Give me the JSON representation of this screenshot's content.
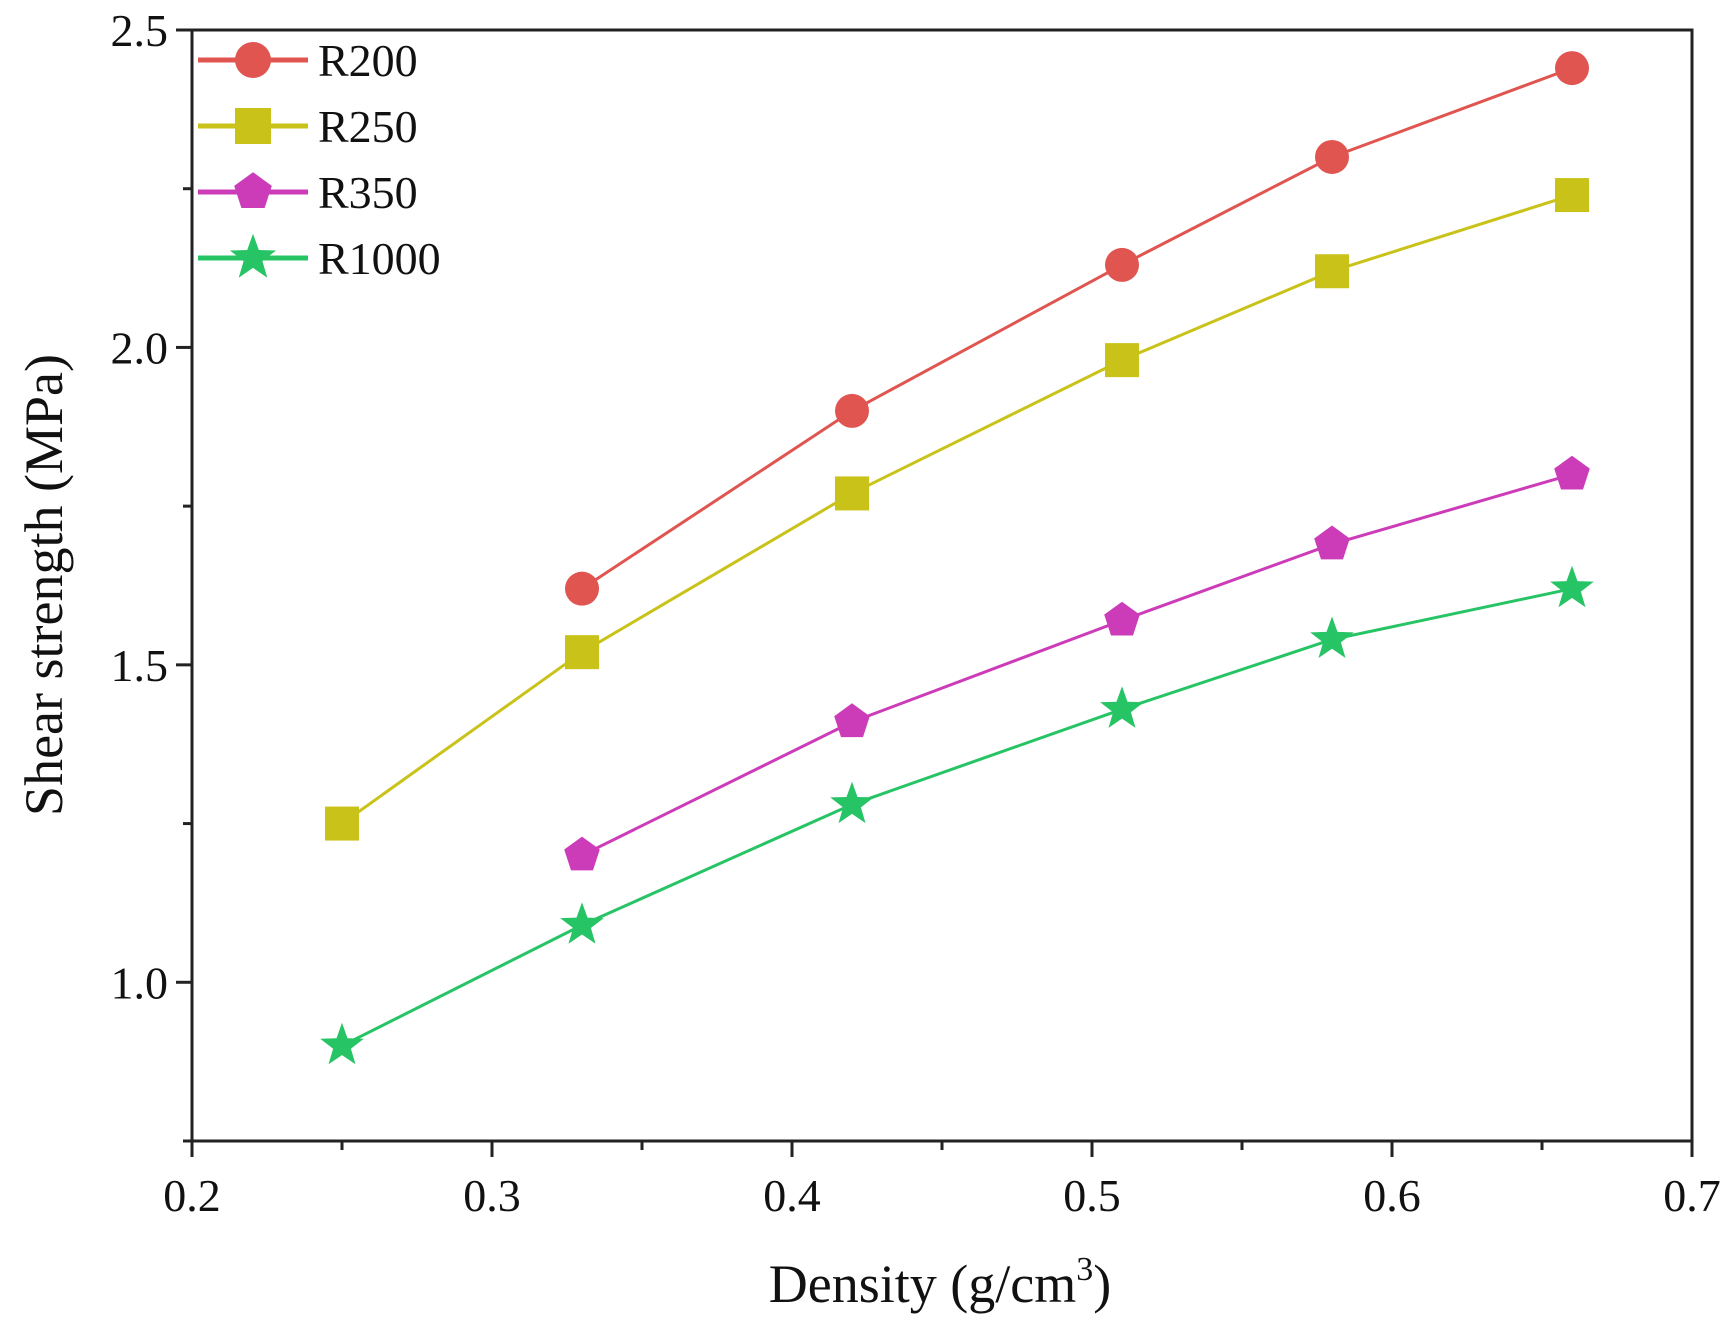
{
  "chart_data": {
    "type": "line",
    "xlabel": "Density (g/cm",
    "xlabel_superscript": "3",
    "xlabel_suffix": ")",
    "ylabel": "Shear strength (MPa)",
    "xlim": [
      0.2,
      0.7
    ],
    "ylim": [
      0.75,
      2.5
    ],
    "x_ticks": [
      0.2,
      0.3,
      0.4,
      0.5,
      0.6,
      0.7
    ],
    "x_tick_labels": [
      "0.2",
      "0.3",
      "0.4",
      "0.5",
      "0.6",
      "0.7"
    ],
    "y_ticks": [
      1.0,
      1.5,
      2.0,
      2.5
    ],
    "y_tick_labels": [
      "1.0",
      "1.5",
      "2.0",
      "2.5"
    ],
    "grid": false,
    "legend_position": "top-left",
    "series": [
      {
        "name": "R200",
        "color": "#e05550",
        "marker": "circle",
        "x": [
          0.33,
          0.42,
          0.51,
          0.58,
          0.66
        ],
        "y": [
          1.62,
          1.9,
          2.13,
          2.3,
          2.44
        ]
      },
      {
        "name": "R250",
        "color": "#c9c218",
        "marker": "square",
        "x": [
          0.25,
          0.33,
          0.42,
          0.51,
          0.58,
          0.66
        ],
        "y": [
          1.25,
          1.52,
          1.77,
          1.98,
          2.12,
          2.24
        ]
      },
      {
        "name": "R350",
        "color": "#cc3cb8",
        "marker": "pentagon",
        "x": [
          0.33,
          0.42,
          0.51,
          0.58,
          0.66
        ],
        "y": [
          1.2,
          1.41,
          1.57,
          1.69,
          1.8
        ]
      },
      {
        "name": "R1000",
        "color": "#27c465",
        "marker": "star",
        "x": [
          0.25,
          0.33,
          0.42,
          0.51,
          0.58,
          0.66
        ],
        "y": [
          0.9,
          1.09,
          1.28,
          1.43,
          1.54,
          1.62
        ]
      }
    ]
  }
}
